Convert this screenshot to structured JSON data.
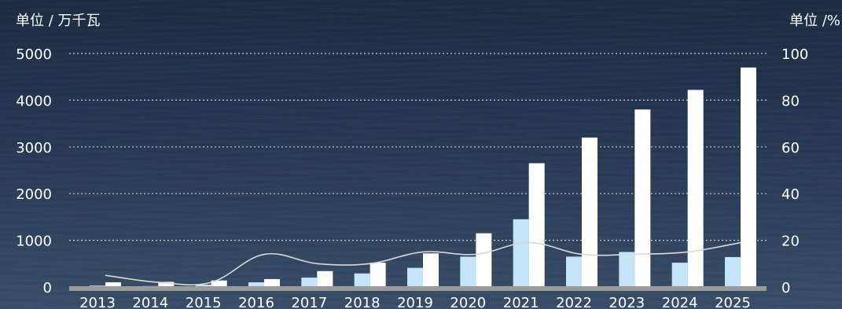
{
  "chart_data": {
    "type": "bar",
    "left_unit_label": "单位 / 万千瓦",
    "right_unit_label": "单位 /%",
    "categories": [
      "2013",
      "2014",
      "2015",
      "2016",
      "2017",
      "2018",
      "2019",
      "2020",
      "2021",
      "2022",
      "2023",
      "2024",
      "2025"
    ],
    "series": [
      {
        "type": "bar",
        "axis": "left",
        "values": [
          30,
          20,
          50,
          100,
          200,
          290,
          410,
          650,
          1450,
          650,
          750,
          520,
          640
        ],
        "color": "#c4e4f8"
      },
      {
        "type": "bar",
        "axis": "left",
        "values": [
          100,
          110,
          140,
          170,
          340,
          520,
          720,
          1150,
          2650,
          3200,
          3800,
          4220,
          4700
        ],
        "color": "#ffffff"
      },
      {
        "type": "line",
        "axis": "right",
        "values": [
          5,
          2,
          2,
          14,
          10,
          10,
          15,
          14,
          19,
          14,
          14,
          15,
          19
        ],
        "color": "#d8d8d8"
      }
    ],
    "y_left": {
      "min": 0,
      "max": 5000,
      "ticks": [
        0,
        1000,
        2000,
        3000,
        4000,
        5000
      ]
    },
    "y_right": {
      "min": 0,
      "max": 100,
      "ticks": [
        0,
        20,
        40,
        60,
        80,
        100
      ]
    },
    "grid": true,
    "legend": "none"
  }
}
